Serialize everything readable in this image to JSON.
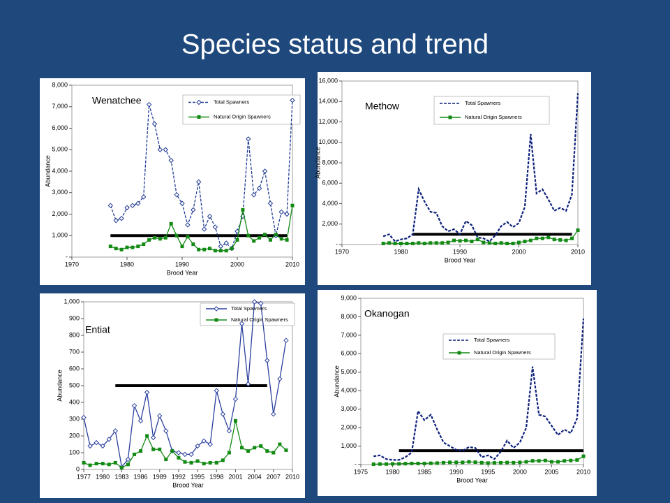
{
  "title": "Species status and trend",
  "chart_data": [
    {
      "type": "line",
      "title": "Wenatchee",
      "ylabel": "Abundance",
      "xlabel": "Brood Year",
      "xlim": [
        1970,
        2010
      ],
      "xticks": [
        1970,
        1980,
        1990,
        2000,
        2010
      ],
      "ylim": [
        0,
        8000
      ],
      "yticks": [
        {
          "value": 0,
          "label": "-"
        },
        {
          "value": 1000,
          "label": "1,000"
        },
        {
          "value": 2000,
          "label": "2,000"
        },
        {
          "value": 3000,
          "label": "3,000"
        },
        {
          "value": 4000,
          "label": "4,000"
        },
        {
          "value": 5000,
          "label": "5,000"
        },
        {
          "value": 6000,
          "label": "6,000"
        },
        {
          "value": 7000,
          "label": "7,000"
        },
        {
          "value": 8000,
          "label": "8,000"
        }
      ],
      "x": [
        1977,
        1978,
        1979,
        1980,
        1981,
        1982,
        1983,
        1984,
        1985,
        1986,
        1987,
        1988,
        1989,
        1990,
        1991,
        1992,
        1993,
        1994,
        1995,
        1996,
        1997,
        1998,
        1999,
        2000,
        2001,
        2002,
        2003,
        2004,
        2005,
        2006,
        2007,
        2008,
        2009,
        2010
      ],
      "series": [
        {
          "name": "Total Spawners",
          "color": "#1f3a93",
          "dash": true,
          "marker": "diamond",
          "values": [
            2400,
            1700,
            1800,
            2300,
            2400,
            2500,
            2800,
            7100,
            6200,
            5000,
            5000,
            4500,
            2900,
            2500,
            1500,
            2200,
            3500,
            1300,
            1900,
            1400,
            500,
            650,
            400,
            1200,
            1900,
            5500,
            2900,
            3200,
            4000,
            2500,
            1000,
            2100,
            2000,
            7300
          ]
        },
        {
          "name": "Natural Origin Spawners",
          "color": "#138a13",
          "dash": false,
          "marker": "square",
          "values": [
            500,
            400,
            350,
            450,
            450,
            500,
            600,
            800,
            900,
            850,
            900,
            1550,
            1000,
            500,
            950,
            600,
            350,
            350,
            400,
            300,
            300,
            300,
            400,
            800,
            2200,
            1000,
            750,
            900,
            1050,
            800,
            1050,
            850,
            800,
            2400
          ]
        }
      ],
      "hline": {
        "y": 1000,
        "x": [
          1977,
          2009
        ]
      }
    },
    {
      "type": "line",
      "title": "Methow",
      "ylabel": "Abundance",
      "xlabel": "Brood Year",
      "xlim": [
        1970,
        2010
      ],
      "xticks": [
        1970,
        1980,
        1990,
        2000,
        2010
      ],
      "ylim": [
        0,
        16000
      ],
      "yticks": [
        {
          "value": 0,
          "label": "-"
        },
        {
          "value": 2000,
          "label": "2,000"
        },
        {
          "value": 4000,
          "label": "4,000"
        },
        {
          "value": 6000,
          "label": "6,000"
        },
        {
          "value": 8000,
          "label": "8,000"
        },
        {
          "value": 10000,
          "label": "10,000"
        },
        {
          "value": 12000,
          "label": "12,000"
        },
        {
          "value": 14000,
          "label": "14,000"
        },
        {
          "value": 16000,
          "label": "16,000"
        }
      ],
      "x": [
        1977,
        1978,
        1979,
        1980,
        1981,
        1982,
        1983,
        1984,
        1985,
        1986,
        1987,
        1988,
        1989,
        1990,
        1991,
        1992,
        1993,
        1994,
        1995,
        1996,
        1997,
        1998,
        1999,
        2000,
        2001,
        2002,
        2003,
        2004,
        2005,
        2006,
        2007,
        2008,
        2009,
        2010
      ],
      "series": [
        {
          "name": "Total Spawners",
          "color": "#0b1f7a",
          "dash": true,
          "marker": "none",
          "values": [
            800,
            1000,
            300,
            500,
            600,
            1000,
            5400,
            4200,
            3200,
            3100,
            1800,
            1300,
            1500,
            1000,
            2300,
            1900,
            700,
            600,
            300,
            900,
            1800,
            2200,
            1700,
            2100,
            3700,
            10800,
            5000,
            5400,
            4400,
            3300,
            3600,
            3300,
            4900,
            14800
          ]
        },
        {
          "name": "Natural Origin Spawners",
          "color": "#138a13",
          "dash": false,
          "marker": "square",
          "values": [
            100,
            150,
            100,
            100,
            100,
            100,
            150,
            100,
            150,
            150,
            150,
            200,
            400,
            350,
            400,
            300,
            500,
            200,
            150,
            100,
            150,
            100,
            100,
            200,
            300,
            400,
            600,
            600,
            700,
            500,
            450,
            400,
            600,
            1400
          ]
        }
      ],
      "hline": {
        "y": 1000,
        "x": [
          1982,
          2009
        ]
      }
    },
    {
      "type": "line",
      "title": "Entiat",
      "ylabel": "Abundance",
      "xlabel": "Brood Year",
      "xlim": [
        1977,
        2010
      ],
      "xticks": [
        1977,
        1980,
        1983,
        1986,
        1989,
        1992,
        1995,
        1998,
        2001,
        2004,
        2007,
        2010
      ],
      "ylim": [
        0,
        1000
      ],
      "yticks": [
        0,
        100,
        200,
        300,
        400,
        500,
        600,
        700,
        800,
        900,
        {
          "value": 1000,
          "label": "1,000"
        }
      ],
      "x": [
        1977,
        1978,
        1979,
        1980,
        1981,
        1982,
        1983,
        1984,
        1985,
        1986,
        1987,
        1988,
        1989,
        1990,
        1991,
        1992,
        1993,
        1994,
        1995,
        1996,
        1997,
        1998,
        1999,
        2000,
        2001,
        2002,
        2003,
        2004,
        2005,
        2006,
        2007,
        2008,
        2009
      ],
      "series": [
        {
          "name": "Total Spawners",
          "color": "#2a3f9e",
          "dash": false,
          "marker": "diamond",
          "values": [
            310,
            140,
            160,
            140,
            180,
            230,
            15,
            60,
            380,
            290,
            460,
            190,
            320,
            230,
            110,
            100,
            90,
            90,
            140,
            170,
            150,
            470,
            330,
            230,
            420,
            870,
            510,
            1000,
            990,
            650,
            330,
            540,
            770
          ]
        },
        {
          "name": "Natural Origin Spawners",
          "color": "#138a13",
          "dash": false,
          "marker": "square",
          "values": [
            40,
            25,
            35,
            35,
            30,
            40,
            10,
            30,
            90,
            110,
            200,
            120,
            120,
            60,
            110,
            70,
            45,
            40,
            50,
            35,
            40,
            40,
            55,
            100,
            290,
            130,
            110,
            130,
            140,
            110,
            100,
            150,
            115
          ]
        }
      ],
      "hline": {
        "y": 500,
        "x": [
          1982,
          2006
        ]
      }
    },
    {
      "type": "line",
      "title": "Okanogan",
      "ylabel": "Abundance",
      "xlabel": "Brood Year",
      "xlim": [
        1975,
        2010
      ],
      "xticks": [
        1975,
        1980,
        1985,
        1990,
        1995,
        2000,
        2005,
        2010
      ],
      "ylim": [
        0,
        9000
      ],
      "yticks": [
        {
          "value": 0,
          "label": "-"
        },
        {
          "value": 1000,
          "label": "1,000"
        },
        {
          "value": 2000,
          "label": "2,000"
        },
        {
          "value": 3000,
          "label": "3,000"
        },
        {
          "value": 4000,
          "label": "4,000"
        },
        {
          "value": 5000,
          "label": "5,000"
        },
        {
          "value": 6000,
          "label": "6,000"
        },
        {
          "value": 7000,
          "label": "7,000"
        },
        {
          "value": 8000,
          "label": "8,000"
        },
        {
          "value": 9000,
          "label": "9,000"
        }
      ],
      "x": [
        1977,
        1978,
        1979,
        1980,
        1981,
        1982,
        1983,
        1984,
        1985,
        1986,
        1987,
        1988,
        1989,
        1990,
        1991,
        1992,
        1993,
        1994,
        1995,
        1996,
        1997,
        1998,
        1999,
        2000,
        2001,
        2002,
        2003,
        2004,
        2005,
        2006,
        2007,
        2008,
        2009,
        2010
      ],
      "series": [
        {
          "name": "Total Spawners",
          "color": "#0b1f7a",
          "dash": true,
          "marker": "none",
          "values": [
            450,
            500,
            300,
            250,
            250,
            400,
            650,
            2900,
            2400,
            2700,
            1900,
            1200,
            1000,
            800,
            750,
            950,
            900,
            400,
            500,
            300,
            700,
            1300,
            900,
            1200,
            2000,
            5300,
            2700,
            2600,
            2100,
            1600,
            1900,
            1700,
            2500,
            7900
          ]
        },
        {
          "name": "Natural Origin Spawners",
          "color": "#138a13",
          "dash": false,
          "marker": "square",
          "values": [
            20,
            30,
            30,
            40,
            40,
            50,
            60,
            60,
            60,
            70,
            80,
            100,
            120,
            120,
            120,
            150,
            130,
            100,
            80,
            90,
            100,
            110,
            100,
            120,
            150,
            200,
            200,
            220,
            150,
            150,
            200,
            220,
            250,
            450
          ]
        }
      ],
      "hline": {
        "y": 750,
        "x": [
          1981,
          2010
        ]
      }
    }
  ]
}
